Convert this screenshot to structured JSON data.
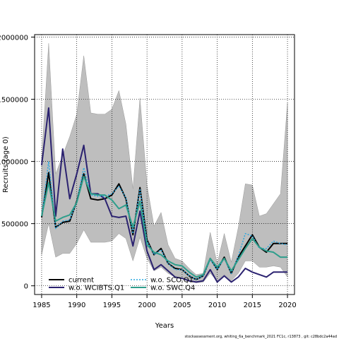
{
  "chart_data": {
    "type": "line",
    "title": "",
    "xlabel": "Years",
    "ylabel": "Recruits (age 0)",
    "xlim": [
      1984,
      2021
    ],
    "ylim": [
      -70000,
      2020000
    ],
    "xticks": [
      1985,
      1990,
      1995,
      2000,
      2005,
      2010,
      2015,
      2020
    ],
    "yticks": [
      0,
      500000,
      1000000,
      1500000,
      2000000
    ],
    "ytick_labels": [
      "0",
      "500000",
      "1000000",
      "1500000",
      "2000000"
    ],
    "grid": true,
    "legend_position": "bottom-left",
    "footnote": "stockassessment.org, whiting_6a_benchmark_2021 FC1c, r13873 , git: c28bdc2a44ad",
    "x": [
      1985,
      1986,
      1987,
      1988,
      1989,
      1990,
      1991,
      1992,
      1993,
      1994,
      1995,
      1996,
      1997,
      1998,
      1999,
      2000,
      2001,
      2002,
      2003,
      2004,
      2005,
      2006,
      2007,
      2008,
      2009,
      2010,
      2011,
      2012,
      2013,
      2014,
      2015,
      2016,
      2017,
      2018,
      2019,
      2020
    ],
    "confidence_band": {
      "color": "#bebebe",
      "upper": [
        1020000,
        1950000,
        900000,
        1050000,
        1200000,
        1380000,
        1850000,
        1390000,
        1380000,
        1380000,
        1420000,
        1570000,
        1300000,
        780000,
        1510000,
        810000,
        480000,
        590000,
        330000,
        220000,
        200000,
        140000,
        90000,
        100000,
        430000,
        180000,
        420000,
        190000,
        470000,
        820000,
        810000,
        560000,
        580000,
        660000,
        740000,
        1470000
      ],
      "lower": [
        250000,
        500000,
        230000,
        260000,
        260000,
        340000,
        450000,
        350000,
        350000,
        350000,
        360000,
        420000,
        380000,
        200000,
        390000,
        220000,
        120000,
        150000,
        100000,
        70000,
        60000,
        40000,
        25000,
        30000,
        100000,
        40000,
        90000,
        40000,
        100000,
        200000,
        200000,
        150000,
        150000,
        160000,
        150000,
        70000
      ]
    },
    "series": [
      {
        "name": "current",
        "color": "#000000",
        "dash": "solid",
        "width": 2,
        "values": [
          550000,
          910000,
          470000,
          510000,
          520000,
          680000,
          900000,
          700000,
          690000,
          700000,
          730000,
          820000,
          700000,
          410000,
          790000,
          370000,
          250000,
          300000,
          180000,
          140000,
          130000,
          80000,
          50000,
          80000,
          220000,
          130000,
          230000,
          100000,
          230000,
          320000,
          410000,
          310000,
          270000,
          340000,
          340000,
          340000
        ]
      },
      {
        "name": "w.o. WCIBTS.Q1",
        "color": "#2b2270",
        "dash": "solid",
        "width": 2,
        "values": [
          970000,
          1430000,
          560000,
          1100000,
          700000,
          900000,
          1130000,
          740000,
          740000,
          700000,
          560000,
          550000,
          560000,
          320000,
          600000,
          280000,
          130000,
          170000,
          120000,
          70000,
          60000,
          40000,
          30000,
          40000,
          130000,
          30000,
          80000,
          30000,
          70000,
          140000,
          110000,
          90000,
          70000,
          110000,
          110000,
          110000
        ]
      },
      {
        "name": "w.o. SCO.Q1",
        "color": "#29a8e0",
        "dash": "dotted",
        "width": 1.5,
        "values": [
          560000,
          1000000,
          460000,
          520000,
          530000,
          670000,
          950000,
          730000,
          720000,
          720000,
          740000,
          800000,
          710000,
          420000,
          780000,
          360000,
          250000,
          290000,
          180000,
          130000,
          130000,
          80000,
          50000,
          80000,
          210000,
          130000,
          220000,
          100000,
          240000,
          420000,
          400000,
          300000,
          300000,
          360000,
          340000,
          330000
        ]
      },
      {
        "name": "w.o. SWC.Q4",
        "color": "#2e9e8c",
        "dash": "solid",
        "width": 2,
        "values": [
          560000,
          830000,
          520000,
          550000,
          570000,
          670000,
          880000,
          740000,
          730000,
          730000,
          690000,
          620000,
          650000,
          470000,
          680000,
          330000,
          270000,
          250000,
          200000,
          170000,
          160000,
          110000,
          70000,
          90000,
          220000,
          150000,
          220000,
          120000,
          210000,
          300000,
          380000,
          310000,
          280000,
          270000,
          230000,
          230000
        ]
      }
    ]
  }
}
